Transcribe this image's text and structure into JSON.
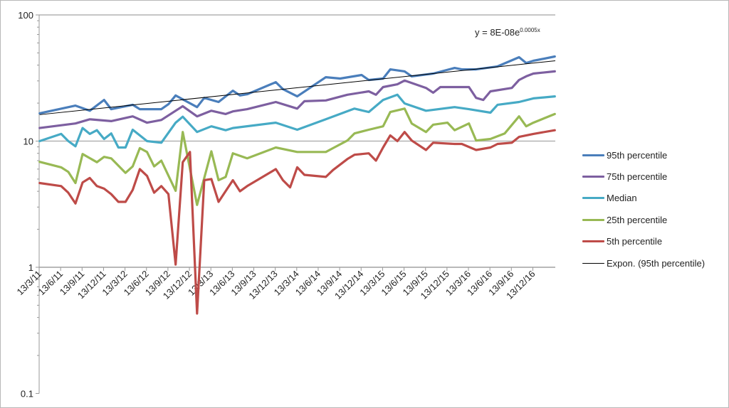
{
  "chart_data": {
    "type": "line",
    "title": "",
    "xlabel": "",
    "ylabel": "",
    "y_scale": "log",
    "ylim": [
      0.1,
      100
    ],
    "y_ticks": [
      "0.1",
      "1",
      "10",
      "100"
    ],
    "x_ticks": [
      "13/3/11",
      "13/6/11",
      "13/9/11",
      "13/12/11",
      "13/3/12",
      "13/6/12",
      "13/9/12",
      "13/12/12",
      "13/3/13",
      "13/6/13",
      "13/9/13",
      "13/12/13",
      "13/3/14",
      "13/6/14",
      "13/9/14",
      "13/12/14",
      "13/3/15",
      "13/6/15",
      "13/9/15",
      "13/12/15",
      "13/3/16",
      "13/6/16",
      "13/9/16",
      "13/12/16"
    ],
    "grid": "horizontal major",
    "legend_position": "right",
    "series": [
      {
        "name": "95th percentile",
        "color": "#4a7ebb",
        "points": [
          [
            "2011-03",
            16.6
          ],
          [
            "2011-08",
            19.1
          ],
          [
            "2011-10",
            17.4
          ],
          [
            "2011-12",
            21.2
          ],
          [
            "2012-01",
            17.9
          ],
          [
            "2012-04",
            19.4
          ],
          [
            "2012-05",
            17.9
          ],
          [
            "2012-08",
            17.9
          ],
          [
            "2012-09",
            19.6
          ],
          [
            "2012-10",
            23.0
          ],
          [
            "2013-01",
            18.6
          ],
          [
            "2013-02",
            22.0
          ],
          [
            "2013-04",
            20.4
          ],
          [
            "2013-06",
            25.1
          ],
          [
            "2013-07",
            23.0
          ],
          [
            "2013-08",
            23.5
          ],
          [
            "2013-12",
            29.3
          ],
          [
            "2014-01",
            25.8
          ],
          [
            "2014-03",
            22.6
          ],
          [
            "2014-07",
            32.1
          ],
          [
            "2014-09",
            31.3
          ],
          [
            "2014-12",
            33.4
          ],
          [
            "2015-01",
            30.5
          ],
          [
            "2015-03",
            31.3
          ],
          [
            "2015-04",
            37.0
          ],
          [
            "2015-06",
            35.7
          ],
          [
            "2015-07",
            32.6
          ],
          [
            "2015-10",
            34.3
          ],
          [
            "2016-01",
            38.0
          ],
          [
            "2016-02",
            37.0
          ],
          [
            "2016-04",
            37.0
          ],
          [
            "2016-07",
            39.1
          ],
          [
            "2016-10",
            46.2
          ],
          [
            "2016-11",
            41.6
          ],
          [
            "2016-12",
            43.3
          ],
          [
            "2017-03",
            46.8
          ]
        ]
      },
      {
        "name": "75th percentile",
        "color": "#7d5fa0",
        "points": [
          [
            "2011-03",
            12.7
          ],
          [
            "2011-08",
            13.8
          ],
          [
            "2011-10",
            14.9
          ],
          [
            "2012-01",
            14.4
          ],
          [
            "2012-04",
            15.7
          ],
          [
            "2012-06",
            14.0
          ],
          [
            "2012-08",
            14.7
          ],
          [
            "2012-10",
            17.4
          ],
          [
            "2012-11",
            18.9
          ],
          [
            "2013-01",
            15.7
          ],
          [
            "2013-03",
            17.4
          ],
          [
            "2013-05",
            16.4
          ],
          [
            "2013-06",
            17.2
          ],
          [
            "2013-08",
            17.9
          ],
          [
            "2013-12",
            20.4
          ],
          [
            "2014-03",
            18.1
          ],
          [
            "2014-04",
            20.7
          ],
          [
            "2014-07",
            21.0
          ],
          [
            "2014-10",
            23.3
          ],
          [
            "2015-01",
            24.8
          ],
          [
            "2015-02",
            23.3
          ],
          [
            "2015-03",
            26.8
          ],
          [
            "2015-05",
            28.2
          ],
          [
            "2015-06",
            30.2
          ],
          [
            "2015-09",
            26.4
          ],
          [
            "2015-10",
            24.2
          ],
          [
            "2015-11",
            26.8
          ],
          [
            "2016-03",
            26.8
          ],
          [
            "2016-04",
            22.0
          ],
          [
            "2016-05",
            21.2
          ],
          [
            "2016-06",
            24.8
          ],
          [
            "2016-09",
            26.4
          ],
          [
            "2016-10",
            30.5
          ],
          [
            "2016-11",
            32.6
          ],
          [
            "2016-12",
            34.3
          ],
          [
            "2017-03",
            35.7
          ]
        ]
      },
      {
        "name": "Median",
        "color": "#46aac5",
        "points": [
          [
            "2011-03",
            10.0
          ],
          [
            "2011-06",
            11.4
          ],
          [
            "2011-07",
            10.0
          ],
          [
            "2011-08",
            9.1
          ],
          [
            "2011-09",
            12.7
          ],
          [
            "2011-10",
            11.4
          ],
          [
            "2011-11",
            12.2
          ],
          [
            "2011-12",
            10.4
          ],
          [
            "2012-01",
            11.5
          ],
          [
            "2012-02",
            8.9
          ],
          [
            "2012-03",
            8.9
          ],
          [
            "2012-04",
            12.3
          ],
          [
            "2012-06",
            10.0
          ],
          [
            "2012-08",
            9.7
          ],
          [
            "2012-10",
            14.0
          ],
          [
            "2012-11",
            15.6
          ],
          [
            "2013-01",
            11.8
          ],
          [
            "2013-03",
            13.1
          ],
          [
            "2013-05",
            12.2
          ],
          [
            "2013-06",
            12.7
          ],
          [
            "2013-12",
            14.0
          ],
          [
            "2014-03",
            12.3
          ],
          [
            "2014-07",
            14.9
          ],
          [
            "2014-11",
            18.1
          ],
          [
            "2015-01",
            17.0
          ],
          [
            "2015-03",
            21.2
          ],
          [
            "2015-05",
            23.3
          ],
          [
            "2015-06",
            19.9
          ],
          [
            "2015-09",
            17.4
          ],
          [
            "2016-01",
            18.6
          ],
          [
            "2016-03",
            17.9
          ],
          [
            "2016-06",
            16.8
          ],
          [
            "2016-07",
            19.4
          ],
          [
            "2016-10",
            20.4
          ],
          [
            "2016-12",
            21.8
          ],
          [
            "2017-03",
            22.6
          ]
        ]
      },
      {
        "name": "25th percentile",
        "color": "#98b954",
        "points": [
          [
            "2011-03",
            6.85
          ],
          [
            "2011-06",
            6.2
          ],
          [
            "2011-07",
            5.7
          ],
          [
            "2011-08",
            4.65
          ],
          [
            "2011-09",
            7.9
          ],
          [
            "2011-11",
            6.8
          ],
          [
            "2011-12",
            7.5
          ],
          [
            "2012-01",
            7.3
          ],
          [
            "2012-03",
            5.6
          ],
          [
            "2012-04",
            6.3
          ],
          [
            "2012-05",
            8.8
          ],
          [
            "2012-06",
            8.2
          ],
          [
            "2012-07",
            6.3
          ],
          [
            "2012-08",
            7.0
          ],
          [
            "2012-10",
            4.04
          ],
          [
            "2012-11",
            11.8
          ],
          [
            "2013-01",
            3.12
          ],
          [
            "2013-03",
            8.3
          ],
          [
            "2013-04",
            4.9
          ],
          [
            "2013-05",
            5.2
          ],
          [
            "2013-06",
            8.0
          ],
          [
            "2013-08",
            7.3
          ],
          [
            "2013-12",
            8.9
          ],
          [
            "2014-03",
            8.2
          ],
          [
            "2014-07",
            8.2
          ],
          [
            "2014-08",
            8.8
          ],
          [
            "2014-10",
            10.1
          ],
          [
            "2014-11",
            11.5
          ],
          [
            "2015-01",
            12.3
          ],
          [
            "2015-03",
            13.1
          ],
          [
            "2015-04",
            17.0
          ],
          [
            "2015-06",
            18.1
          ],
          [
            "2015-07",
            13.8
          ],
          [
            "2015-09",
            11.8
          ],
          [
            "2015-10",
            13.5
          ],
          [
            "2015-12",
            14.0
          ],
          [
            "2016-01",
            12.2
          ],
          [
            "2016-03",
            13.8
          ],
          [
            "2016-04",
            10.1
          ],
          [
            "2016-06",
            10.4
          ],
          [
            "2016-08",
            11.5
          ],
          [
            "2016-10",
            15.7
          ],
          [
            "2016-11",
            13.1
          ],
          [
            "2016-12",
            14.0
          ],
          [
            "2017-03",
            16.4
          ]
        ]
      },
      {
        "name": "5th percentile",
        "color": "#be4b48",
        "points": [
          [
            "2011-03",
            4.65
          ],
          [
            "2011-06",
            4.4
          ],
          [
            "2011-07",
            3.9
          ],
          [
            "2011-08",
            3.2
          ],
          [
            "2011-09",
            4.7
          ],
          [
            "2011-10",
            5.1
          ],
          [
            "2011-11",
            4.4
          ],
          [
            "2011-12",
            4.2
          ],
          [
            "2012-01",
            3.8
          ],
          [
            "2012-02",
            3.3
          ],
          [
            "2012-03",
            3.3
          ],
          [
            "2012-04",
            4.1
          ],
          [
            "2012-05",
            6.0
          ],
          [
            "2012-06",
            5.3
          ],
          [
            "2012-07",
            3.9
          ],
          [
            "2012-08",
            4.4
          ],
          [
            "2012-09",
            3.8
          ],
          [
            "2012-10",
            1.05
          ],
          [
            "2012-11",
            6.8
          ],
          [
            "2012-12",
            8.2
          ],
          [
            "2013-01",
            0.43
          ],
          [
            "2013-02",
            4.9
          ],
          [
            "2013-03",
            5.0
          ],
          [
            "2013-04",
            3.3
          ],
          [
            "2013-06",
            4.9
          ],
          [
            "2013-07",
            4.0
          ],
          [
            "2013-08",
            4.4
          ],
          [
            "2013-12",
            6.0
          ],
          [
            "2014-01",
            4.9
          ],
          [
            "2014-02",
            4.3
          ],
          [
            "2014-03",
            6.2
          ],
          [
            "2014-04",
            5.4
          ],
          [
            "2014-07",
            5.2
          ],
          [
            "2014-08",
            5.9
          ],
          [
            "2014-10",
            7.2
          ],
          [
            "2014-11",
            7.8
          ],
          [
            "2015-01",
            8.0
          ],
          [
            "2015-02",
            7.0
          ],
          [
            "2015-03",
            8.9
          ],
          [
            "2015-04",
            11.1
          ],
          [
            "2015-05",
            10.0
          ],
          [
            "2015-06",
            11.8
          ],
          [
            "2015-07",
            10.1
          ],
          [
            "2015-09",
            8.5
          ],
          [
            "2015-10",
            9.7
          ],
          [
            "2016-01",
            9.5
          ],
          [
            "2016-02",
            9.5
          ],
          [
            "2016-04",
            8.5
          ],
          [
            "2016-06",
            8.9
          ],
          [
            "2016-07",
            9.5
          ],
          [
            "2016-09",
            9.7
          ],
          [
            "2016-10",
            10.8
          ],
          [
            "2016-12",
            11.4
          ],
          [
            "2017-03",
            12.2
          ]
        ]
      }
    ],
    "trendline": {
      "name": "Expon. (95th percentile)",
      "color": "#000000",
      "equation_base": "y = 8E-08e",
      "equation_exponent": "0.0005x",
      "start": [
        "2011-03",
        16.2
      ],
      "end": [
        "2017-03",
        43.3
      ]
    }
  }
}
